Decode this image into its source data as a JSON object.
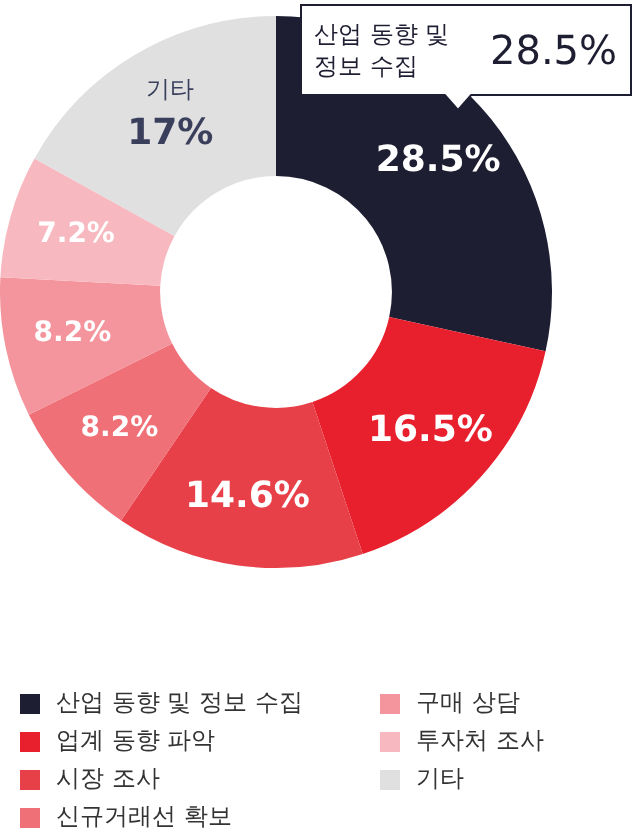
{
  "chart_data": {
    "type": "donut",
    "categories": [
      "산업 동향 및 정보 수집",
      "업계 동향 파악",
      "시장 조사",
      "신규거래선 확보",
      "구매 상담",
      "투자처 조사",
      "기타"
    ],
    "values": [
      28.5,
      16.5,
      14.6,
      8.2,
      8.2,
      7.2,
      17
    ],
    "colors": [
      "#1e1e32",
      "#e8202e",
      "#e84048",
      "#f07078",
      "#f4949c",
      "#f7b8c0",
      "#e0e0e0"
    ],
    "value_labels": [
      "28.5%",
      "16.5%",
      "14.6%",
      "8.2%",
      "8.2%",
      "7.2%",
      "기타\n17%"
    ],
    "annotations": [
      "산업 동향 및 정보 수집",
      "28.5%"
    ],
    "legend": "bottom"
  }
}
